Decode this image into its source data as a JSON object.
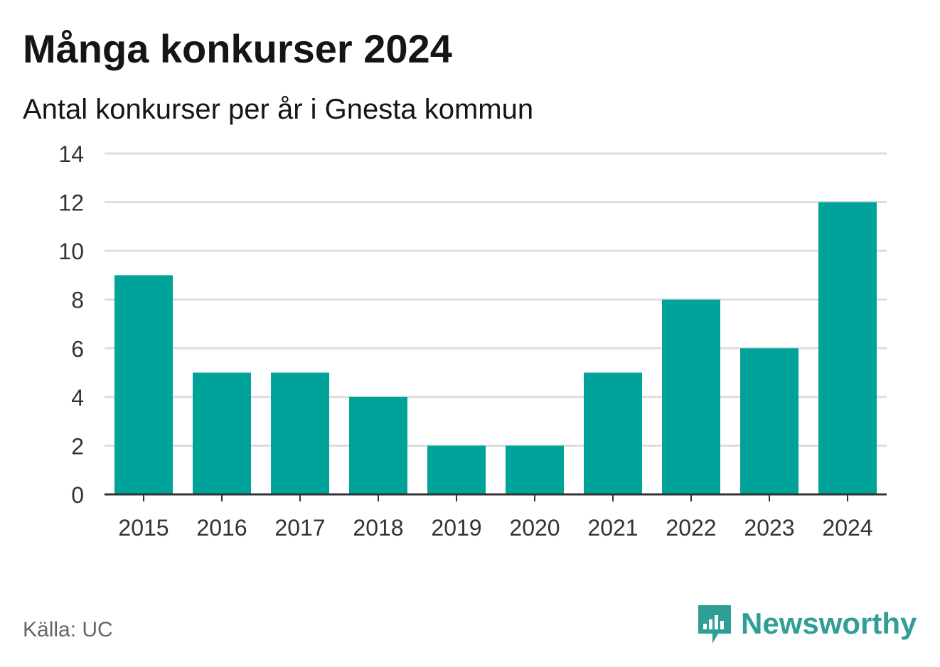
{
  "chart_data": {
    "type": "bar",
    "title": "Många konkurser 2024",
    "subtitle": "Antal konkurser per år i Gnesta kommun",
    "categories": [
      "2015",
      "2016",
      "2017",
      "2018",
      "2019",
      "2020",
      "2021",
      "2022",
      "2023",
      "2024"
    ],
    "values": [
      9,
      5,
      5,
      4,
      2,
      2,
      5,
      8,
      6,
      12
    ],
    "xlabel": "",
    "ylabel": "",
    "ylim": [
      0,
      14
    ],
    "yticks": [
      "0",
      "2",
      "4",
      "6",
      "8",
      "10",
      "12",
      "14"
    ],
    "grid": true,
    "bar_color": "#00a39a",
    "source": "Källa: UC"
  },
  "brand": {
    "name": "Newsworthy",
    "color": "#2f9e96",
    "icon": "bar-chart-speech-bubble-icon"
  }
}
